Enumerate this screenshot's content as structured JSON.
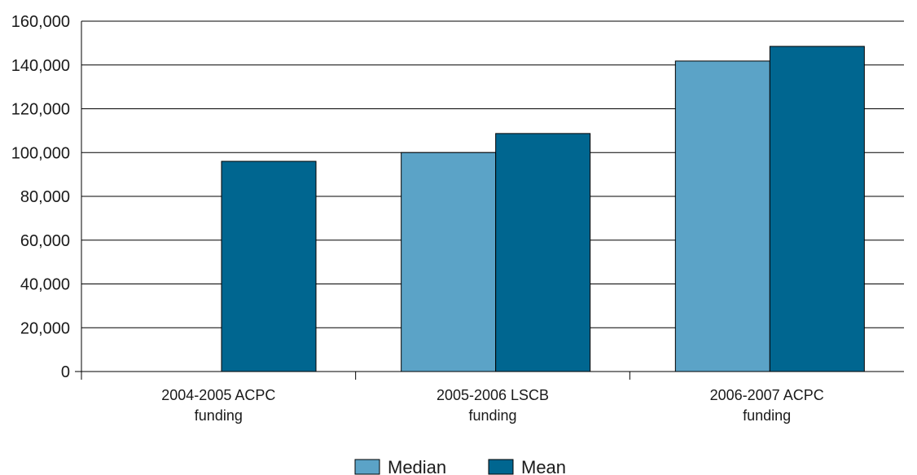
{
  "chart_data": {
    "type": "bar",
    "categories": [
      [
        "2004-2005 ACPC",
        "funding"
      ],
      [
        "2005-2006 LSCB",
        "funding"
      ],
      [
        "2006-2007 ACPC",
        "funding"
      ]
    ],
    "series": [
      {
        "name": "Median",
        "color": "#5ba3c7",
        "values": [
          0,
          100000,
          141800
        ]
      },
      {
        "name": "Mean",
        "color": "#006690",
        "values": [
          96000,
          108700,
          148500
        ]
      }
    ],
    "ylim": [
      0,
      160000
    ],
    "yticks": [
      0,
      20000,
      40000,
      60000,
      80000,
      100000,
      120000,
      140000,
      160000
    ],
    "ytick_labels": [
      "0",
      "20,000",
      "40,000",
      "60,000",
      "80,000",
      "100,000",
      "120,000",
      "140,000",
      "160,000"
    ],
    "grid": true,
    "legend_position": "bottom-center",
    "title": "",
    "xlabel": "",
    "ylabel": ""
  }
}
